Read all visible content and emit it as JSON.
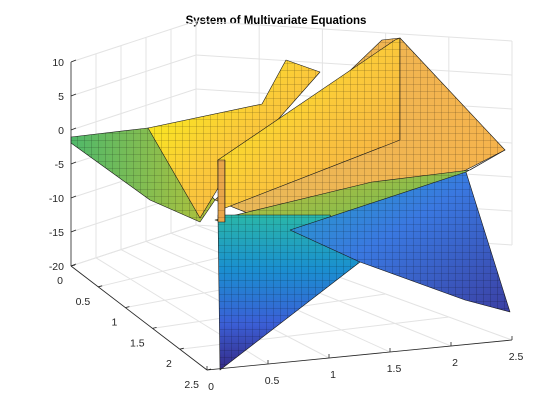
{
  "chart_data": {
    "type": "surface",
    "title": "System of Multivariate Equations",
    "xlabel": "",
    "ylabel": "",
    "zlabel": "",
    "x_ticks": [
      "0",
      "0.5",
      "1",
      "1.5",
      "2",
      "2.5"
    ],
    "y_ticks": [
      "0",
      "0.5",
      "1",
      "1.5",
      "2",
      "2.5"
    ],
    "z_ticks": [
      "10",
      "5",
      "0",
      "-5",
      "-10",
      "-15",
      "-20"
    ],
    "xlim": [
      0,
      2.5
    ],
    "ylim": [
      0,
      2.5
    ],
    "zlim": [
      -20,
      10
    ],
    "grid": true,
    "colormap": "parula",
    "colors": {
      "low": "#352a87",
      "mid_low": "#0f7ebf",
      "mid": "#2ab7a9",
      "mid_high": "#a5be3a",
      "high": "#f9fb0e"
    },
    "surfaces": [
      {
        "description": "flat sheet z=0 plane tilted",
        "z_range": [
          -5,
          0
        ]
      },
      {
        "description": "wall rising near y=1",
        "z_range": [
          -20,
          10
        ]
      },
      {
        "description": "sloped triangular surface",
        "z_range": [
          -20,
          0
        ]
      }
    ]
  }
}
